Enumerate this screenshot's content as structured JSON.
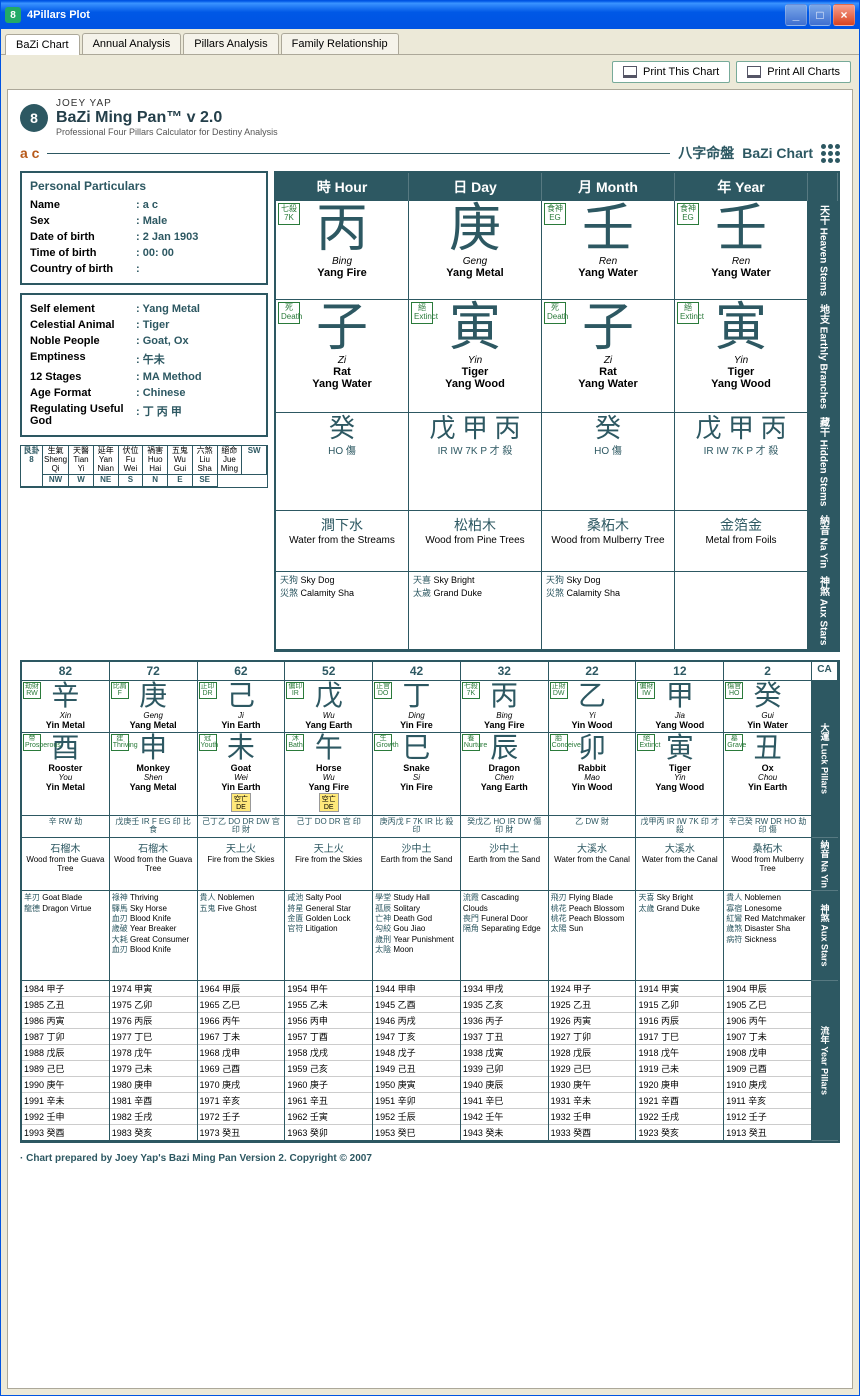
{
  "window": {
    "title": "4Pillars Plot"
  },
  "tabs": [
    "BaZi Chart",
    "Annual Analysis",
    "Pillars Analysis",
    "Family Relationship"
  ],
  "toolbar": {
    "printThis": "Print This Chart",
    "printAll": "Print All Charts"
  },
  "brand": {
    "top": "JOEY YAP",
    "name": "BaZi Ming Pan™ v 2.0",
    "sub": "Professional Four Pillars Calculator for Destiny Analysis"
  },
  "header": {
    "ac": "a c",
    "cn": "八字命盤",
    "en": "BaZi Chart"
  },
  "personal": {
    "title": "Personal Particulars",
    "rows": [
      [
        "Name",
        "a c"
      ],
      [
        "Sex",
        "Male"
      ],
      [
        "Date of birth",
        "2 Jan 1903"
      ],
      [
        "Time of birth",
        "00: 00"
      ],
      [
        "Country of birth",
        ""
      ]
    ]
  },
  "profile": {
    "rows": [
      [
        "Self element",
        "Yang Metal"
      ],
      [
        "Celestial Animal",
        "Tiger"
      ],
      [
        "Noble People",
        "Goat, Ox"
      ],
      [
        "Emptiness",
        "午未"
      ],
      [
        "12 Stages",
        "MA Method"
      ],
      [
        "Age Format",
        "Chinese"
      ],
      [
        "Regulating Useful God",
        "丁  丙 甲"
      ]
    ]
  },
  "miniTop": [
    "艮卦8",
    "生氣 Sheng Qi",
    "天醫 Tian Yi",
    "延年 Yan Nian",
    "伏位 Fu Wei",
    "禍害 Huo Hai",
    "五鬼 Wu Gui",
    "六煞 Liu Sha",
    "絕命 Jue Ming"
  ],
  "miniBot": [
    "",
    "SW",
    "NW",
    "W",
    "NE",
    "S",
    "N",
    "E",
    "SE"
  ],
  "pillarHeads": [
    [
      "時",
      "Hour"
    ],
    [
      "日",
      "Day"
    ],
    [
      "月",
      "Month"
    ],
    [
      "年",
      "Year"
    ]
  ],
  "sideLabels": [
    "天干 Heaven Stems",
    "地支 Earthly Branches",
    "藏干 Hidden Stems",
    "納音 Na Yin",
    "神煞 Aux Stars"
  ],
  "pillars": [
    {
      "tag1": "七殺 7K",
      "hs": "丙",
      "hsPin": "Bing",
      "hsEng": "Yang Fire",
      "tag2": "死 Death",
      "eb": "子",
      "ebPin": "Zi",
      "ebAn": "Rat",
      "ebEl": "Yang Water",
      "hidden": "癸",
      "hiddenSub": "HO 傷",
      "nayinCn": "澗下水",
      "nayinEn": "Water from the Streams",
      "aux": [
        [
          "天狗",
          "Sky Dog"
        ],
        [
          "災煞",
          "Calamity Sha"
        ]
      ]
    },
    {
      "tag1": "",
      "hs": "庚",
      "hsPin": "Geng",
      "hsEng": "Yang Metal",
      "tag2": "絕 Extinct",
      "eb": "寅",
      "ebPin": "Yin",
      "ebAn": "Tiger",
      "ebEl": "Yang Wood",
      "hidden": "戊 甲 丙",
      "hiddenSub": "IR IW 7K  P 才 殺",
      "nayinCn": "松柏木",
      "nayinEn": "Wood from Pine Trees",
      "aux": [
        [
          "天喜",
          "Sky Bright"
        ],
        [
          "太歲",
          "Grand Duke"
        ]
      ]
    },
    {
      "tag1": "食神 EG",
      "hs": "壬",
      "hsPin": "Ren",
      "hsEng": "Yang Water",
      "tag2": "死 Death",
      "eb": "子",
      "ebPin": "Zi",
      "ebAn": "Rat",
      "ebEl": "Yang Water",
      "hidden": "癸",
      "hiddenSub": "HO 傷",
      "nayinCn": "桑柘木",
      "nayinEn": "Wood from Mulberry Tree",
      "aux": [
        [
          "天狗",
          "Sky Dog"
        ],
        [
          "災煞",
          "Calamity Sha"
        ]
      ]
    },
    {
      "tag1": "食神 EG",
      "hs": "壬",
      "hsPin": "Ren",
      "hsEng": "Yang Water",
      "tag2": "絕 Extinct",
      "eb": "寅",
      "ebPin": "Yin",
      "ebAn": "Tiger",
      "ebEl": "Yang Wood",
      "hidden": "戊 甲 丙",
      "hiddenSub": "IR IW 7K  P 才 殺",
      "nayinCn": "金箔金",
      "nayinEn": "Metal from Foils",
      "aux": []
    }
  ],
  "luckAges": [
    "82",
    "72",
    "62",
    "52",
    "42",
    "32",
    "22",
    "12",
    "2",
    "CA"
  ],
  "luckSide": [
    "大運 Luck Pillars",
    "",
    "納音 Na Yin",
    "神煞 Aux Stars",
    "流年 Year Pillars"
  ],
  "luckPillars": [
    {
      "tag": "劫財 RW",
      "hs": "辛",
      "pin": "Xin",
      "eng": "Yin Metal",
      "etag": "帝 Prosperous",
      "eb": "酉",
      "an": "Rooster",
      "apin": "You",
      "ael": "Yin Metal",
      "hid": "辛 RW 劫",
      "nayinCn": "石榴木",
      "nayinEn": "Wood from the Guava Tree",
      "stars": [
        [
          "羊刃",
          "Goat Blade"
        ],
        [
          "龍德",
          "Dragon Virtue"
        ]
      ],
      "years": [
        [
          1984,
          "甲子"
        ],
        [
          1985,
          "乙丑"
        ],
        [
          1986,
          "丙寅"
        ],
        [
          1987,
          "丁卯"
        ],
        [
          1988,
          "戊辰"
        ],
        [
          1989,
          "己巳"
        ],
        [
          1990,
          "庚午"
        ],
        [
          1991,
          "辛未"
        ],
        [
          1992,
          "壬申"
        ],
        [
          1993,
          "癸酉"
        ]
      ]
    },
    {
      "tag": "比肩 F",
      "hs": "庚",
      "pin": "Geng",
      "eng": "Yang Metal",
      "etag": "建 Thriving",
      "eb": "申",
      "an": "Monkey",
      "apin": "Shen",
      "ael": "Yang Metal",
      "hid": "戊庚壬 IR F EG 印 比 食",
      "nayinCn": "石榴木",
      "nayinEn": "Wood from the Guava Tree",
      "stars": [
        [
          "祿神",
          "Thriving"
        ],
        [
          "驛馬",
          "Sky Horse"
        ],
        [
          "血刃",
          "Blood Knife"
        ],
        [
          "歲破",
          "Year Breaker"
        ],
        [
          "大耗",
          "Great Consumer"
        ],
        [
          "血刃",
          "Blood Knife"
        ]
      ],
      "years": [
        [
          1974,
          "甲寅"
        ],
        [
          1975,
          "乙卯"
        ],
        [
          1976,
          "丙辰"
        ],
        [
          1977,
          "丁巳"
        ],
        [
          1978,
          "戊午"
        ],
        [
          1979,
          "己未"
        ],
        [
          1980,
          "庚申"
        ],
        [
          1981,
          "辛酉"
        ],
        [
          1982,
          "壬戌"
        ],
        [
          1983,
          "癸亥"
        ]
      ]
    },
    {
      "tag": "正印 DR",
      "hs": "己",
      "pin": "Ji",
      "eng": "Yin Earth",
      "etag": "冠 Youth",
      "eb": "未",
      "an": "Goat",
      "apin": "Wei",
      "ael": "Yin Earth",
      "hid": "己丁乙 DO DR DW 官 印 財",
      "extra": "空亡 DE",
      "nayinCn": "天上火",
      "nayinEn": "Fire from the Skies",
      "stars": [
        [
          "貴人",
          "Noblemen"
        ],
        [
          "五鬼",
          "Five Ghost"
        ]
      ],
      "years": [
        [
          1964,
          "甲辰"
        ],
        [
          1965,
          "乙巳"
        ],
        [
          1966,
          "丙午"
        ],
        [
          1967,
          "丁未"
        ],
        [
          1968,
          "戊申"
        ],
        [
          1969,
          "己酉"
        ],
        [
          1970,
          "庚戌"
        ],
        [
          1971,
          "辛亥"
        ],
        [
          1972,
          "壬子"
        ],
        [
          1973,
          "癸丑"
        ]
      ]
    },
    {
      "tag": "偏印 IR",
      "hs": "戊",
      "pin": "Wu",
      "eng": "Yang Earth",
      "etag": "沐 Bath",
      "eb": "午",
      "an": "Horse",
      "apin": "Wu",
      "ael": "Yang Fire",
      "hid": "己丁 DO DR 官 印",
      "extra": "空亡 DE",
      "nayinCn": "天上火",
      "nayinEn": "Fire from the Skies",
      "stars": [
        [
          "咸池",
          "Salty Pool"
        ],
        [
          "將星",
          "General Star"
        ],
        [
          "金匱",
          "Golden Lock"
        ],
        [
          "官符",
          "Litigation"
        ]
      ],
      "years": [
        [
          1954,
          "甲午"
        ],
        [
          1955,
          "乙未"
        ],
        [
          1956,
          "丙申"
        ],
        [
          1957,
          "丁酉"
        ],
        [
          1958,
          "戊戌"
        ],
        [
          1959,
          "己亥"
        ],
        [
          1960,
          "庚子"
        ],
        [
          1961,
          "辛丑"
        ],
        [
          1962,
          "壬寅"
        ],
        [
          1963,
          "癸卯"
        ]
      ]
    },
    {
      "tag": "正官 DO",
      "hs": "丁",
      "pin": "Ding",
      "eng": "Yin Fire",
      "etag": "生 Growth",
      "eb": "巳",
      "an": "Snake",
      "apin": "Si",
      "ael": "Yin Fire",
      "hid": "庚丙戊 F 7K IR 比 殺 印",
      "nayinCn": "沙中土",
      "nayinEn": "Earth from the Sand",
      "stars": [
        [
          "學堂",
          "Study Hall"
        ],
        [
          "孤辰",
          "Solitary"
        ],
        [
          "亡神",
          "Death God"
        ],
        [
          "勾絞",
          "Gou Jiao"
        ],
        [
          "歲刑",
          "Year Punishment"
        ],
        [
          "太陰",
          "Moon"
        ]
      ],
      "years": [
        [
          1944,
          "甲申"
        ],
        [
          1945,
          "乙酉"
        ],
        [
          1946,
          "丙戌"
        ],
        [
          1947,
          "丁亥"
        ],
        [
          1948,
          "戊子"
        ],
        [
          1949,
          "己丑"
        ],
        [
          1950,
          "庚寅"
        ],
        [
          1951,
          "辛卯"
        ],
        [
          1952,
          "壬辰"
        ],
        [
          1953,
          "癸巳"
        ]
      ]
    },
    {
      "tag": "七殺 7K",
      "hs": "丙",
      "pin": "Bing",
      "eng": "Yang Fire",
      "etag": "養 Nurture",
      "eb": "辰",
      "an": "Dragon",
      "apin": "Chen",
      "ael": "Yang Earth",
      "hid": "癸戊乙 HO IR DW 傷 印 財",
      "nayinCn": "沙中土",
      "nayinEn": "Earth from the Sand",
      "stars": [
        [
          "流霞",
          "Cascading Clouds"
        ],
        [
          "喪門",
          "Funeral Door"
        ],
        [
          "隔角",
          "Separating Edge"
        ]
      ],
      "years": [
        [
          1934,
          "甲戌"
        ],
        [
          1935,
          "乙亥"
        ],
        [
          1936,
          "丙子"
        ],
        [
          1937,
          "丁丑"
        ],
        [
          1938,
          "戊寅"
        ],
        [
          1939,
          "己卯"
        ],
        [
          1940,
          "庚辰"
        ],
        [
          1941,
          "辛巳"
        ],
        [
          1942,
          "壬午"
        ],
        [
          1943,
          "癸未"
        ]
      ]
    },
    {
      "tag": "正財 DW",
      "hs": "乙",
      "pin": "Yi",
      "eng": "Yin Wood",
      "etag": "胎 Conceive",
      "eb": "卯",
      "an": "Rabbit",
      "apin": "Mao",
      "ael": "Yin Wood",
      "hid": "乙 DW 財",
      "nayinCn": "大溪水",
      "nayinEn": "Water from the Canal",
      "stars": [
        [
          "飛刃",
          "Flying Blade"
        ],
        [
          "桃花",
          "Peach Blossom"
        ],
        [
          "桃花",
          "Peach Blossom"
        ],
        [
          "太陽",
          "Sun"
        ]
      ],
      "years": [
        [
          1924,
          "甲子"
        ],
        [
          1925,
          "乙丑"
        ],
        [
          1926,
          "丙寅"
        ],
        [
          1927,
          "丁卯"
        ],
        [
          1928,
          "戊辰"
        ],
        [
          1929,
          "己巳"
        ],
        [
          1930,
          "庚午"
        ],
        [
          1931,
          "辛未"
        ],
        [
          1932,
          "壬申"
        ],
        [
          1933,
          "癸酉"
        ]
      ]
    },
    {
      "tag": "偏財 IW",
      "hs": "甲",
      "pin": "Jia",
      "eng": "Yang Wood",
      "etag": "絕 Extinct",
      "eb": "寅",
      "an": "Tiger",
      "apin": "Yin",
      "ael": "Yang Wood",
      "hid": "戊甲丙 IR IW 7K 印 才 殺",
      "nayinCn": "大溪水",
      "nayinEn": "Water from the Canal",
      "stars": [
        [
          "天喜",
          "Sky Bright"
        ],
        [
          "太歲",
          "Grand Duke"
        ]
      ],
      "years": [
        [
          1914,
          "甲寅"
        ],
        [
          1915,
          "乙卯"
        ],
        [
          1916,
          "丙辰"
        ],
        [
          1917,
          "丁巳"
        ],
        [
          1918,
          "戊午"
        ],
        [
          1919,
          "己未"
        ],
        [
          1920,
          "庚申"
        ],
        [
          1921,
          "辛酉"
        ],
        [
          1922,
          "壬戌"
        ],
        [
          1923,
          "癸亥"
        ]
      ]
    },
    {
      "tag": "傷官 HO",
      "hs": "癸",
      "pin": "Gui",
      "eng": "Yin Water",
      "etag": "墓 Grave",
      "eb": "丑",
      "an": "Ox",
      "apin": "Chou",
      "ael": "Yin Earth",
      "hid": "辛己癸 RW DR HO 劫 印 傷",
      "nayinCn": "桑柘木",
      "nayinEn": "Wood from Mulberry Tree",
      "stars": [
        [
          "貴人",
          "Noblemen"
        ],
        [
          "寡宿",
          "Lonesome"
        ],
        [
          "紅鸞",
          "Red Matchmaker"
        ],
        [
          "歲煞",
          "Disaster Sha"
        ],
        [
          "病符",
          "Sickness"
        ]
      ],
      "years": [
        [
          1904,
          "甲辰"
        ],
        [
          1905,
          "乙巳"
        ],
        [
          1906,
          "丙午"
        ],
        [
          1907,
          "丁未"
        ],
        [
          1908,
          "戊申"
        ],
        [
          1909,
          "己酉"
        ],
        [
          1910,
          "庚戌"
        ],
        [
          1911,
          "辛亥"
        ],
        [
          1912,
          "壬子"
        ],
        [
          1913,
          "癸丑"
        ]
      ]
    }
  ],
  "footer": "· Chart prepared by Joey Yap's Bazi Ming Pan Version 2. Copyright © 2007"
}
